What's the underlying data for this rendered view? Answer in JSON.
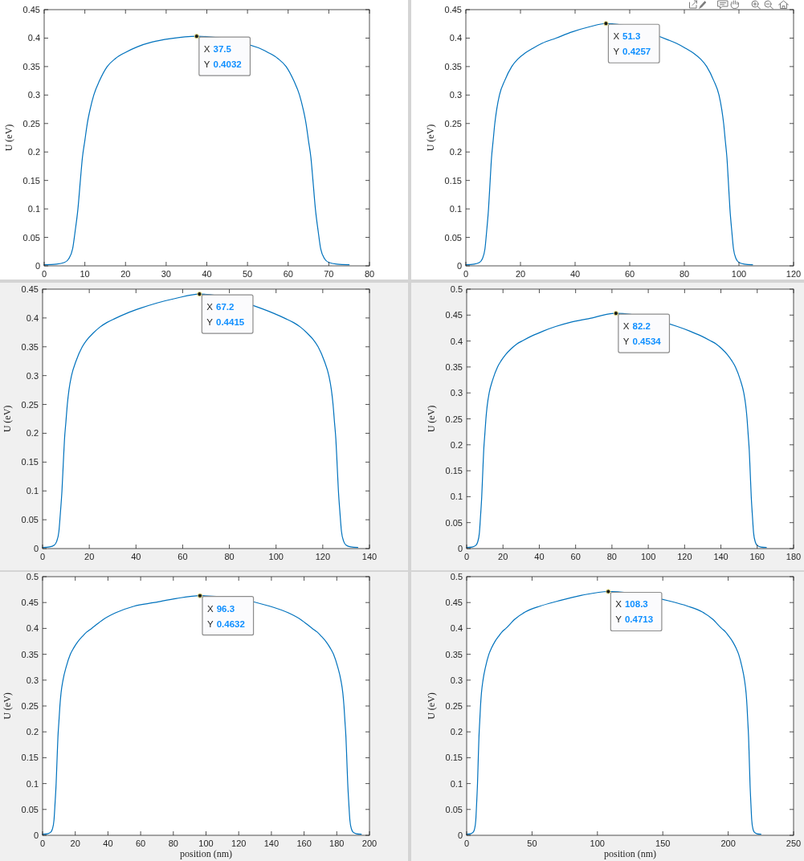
{
  "chart_data": [
    {
      "type": "line",
      "ylabel": "U (eV)",
      "color": "#0072bd",
      "xlim": [
        0,
        80
      ],
      "xticks": [
        0,
        10,
        20,
        30,
        40,
        50,
        60,
        70,
        80
      ],
      "ylim": [
        0,
        0.45
      ],
      "yticks": [
        0,
        0.05,
        0.1,
        0.15,
        0.2,
        0.25,
        0.3,
        0.35,
        0.4,
        0.45
      ],
      "x": [
        0,
        3,
        5,
        6,
        7,
        7.6,
        8.3,
        8.9,
        9.4,
        10,
        10.6,
        11.3,
        12.2,
        13.6,
        15.5,
        17.5,
        20,
        23,
        26.5,
        31,
        37.5,
        52.7,
        55,
        57.5,
        59.5,
        61.4,
        62.8,
        63.7,
        64.4,
        65,
        65.6,
        66.1,
        66.7,
        67.4,
        68,
        69,
        70,
        72,
        75
      ],
      "values": [
        0.002,
        0.003,
        0.006,
        0.012,
        0.03,
        0.06,
        0.1,
        0.15,
        0.19,
        0.22,
        0.25,
        0.275,
        0.3,
        0.325,
        0.35,
        0.364,
        0.375,
        0.385,
        0.393,
        0.399,
        0.4032,
        0.383,
        0.375,
        0.364,
        0.35,
        0.325,
        0.3,
        0.275,
        0.25,
        0.22,
        0.19,
        0.15,
        0.1,
        0.06,
        0.03,
        0.012,
        0.006,
        0.003,
        0.002
      ],
      "annotations": [
        {
          "text": "X 37.5\nY 0.4032",
          "x": 37.5,
          "y": 0.4032
        }
      ]
    },
    {
      "type": "line",
      "ylabel": "U (eV)",
      "color": "#0072bd",
      "xlim": [
        0,
        120
      ],
      "xticks": [
        0,
        20,
        40,
        60,
        80,
        100,
        120
      ],
      "ylim": [
        0,
        0.45
      ],
      "yticks": [
        0,
        0.05,
        0.1,
        0.15,
        0.2,
        0.25,
        0.3,
        0.35,
        0.4,
        0.45
      ],
      "x": [
        0,
        3,
        5,
        6,
        7,
        7.6,
        8.3,
        8.9,
        9.4,
        10,
        10.6,
        11.3,
        12.3,
        14.2,
        16.8,
        19,
        21.5,
        24.5,
        28,
        33,
        39,
        45.4,
        51.3,
        74,
        77,
        80.5,
        83.5,
        86,
        88.2,
        90.8,
        92.7,
        93.7,
        94.4,
        95,
        95.6,
        96.1,
        96.7,
        97.4,
        98,
        99,
        100,
        102,
        105
      ],
      "values": [
        0.002,
        0.003,
        0.006,
        0.012,
        0.03,
        0.06,
        0.1,
        0.15,
        0.19,
        0.22,
        0.25,
        0.275,
        0.3,
        0.325,
        0.35,
        0.363,
        0.373,
        0.382,
        0.391,
        0.4,
        0.411,
        0.42,
        0.4257,
        0.397,
        0.391,
        0.382,
        0.373,
        0.363,
        0.35,
        0.325,
        0.3,
        0.275,
        0.25,
        0.22,
        0.19,
        0.15,
        0.1,
        0.06,
        0.03,
        0.012,
        0.006,
        0.003,
        0.002
      ],
      "annotations": [
        {
          "text": "X 51.3\nY 0.4257",
          "x": 51.3,
          "y": 0.4257
        }
      ]
    },
    {
      "type": "line",
      "ylabel": "U (eV)",
      "color": "#0072bd",
      "xlim": [
        0,
        140
      ],
      "xticks": [
        0,
        20,
        40,
        60,
        80,
        100,
        120,
        140
      ],
      "ylim": [
        0,
        0.45
      ],
      "yticks": [
        0,
        0.05,
        0.1,
        0.15,
        0.2,
        0.25,
        0.3,
        0.35,
        0.4,
        0.45
      ],
      "x": [
        0,
        3,
        5,
        6,
        7,
        7.6,
        8.3,
        8.9,
        9.4,
        10,
        10.6,
        11.3,
        12.4,
        14.3,
        17,
        19,
        21.5,
        24.5,
        27.5,
        31,
        36,
        42,
        49,
        57,
        67.2,
        94,
        99,
        104,
        107.5,
        110.5,
        113.5,
        116,
        118,
        120.7,
        122.6,
        123.7,
        124.4,
        125,
        125.6,
        126.1,
        126.7,
        127.4,
        128,
        129,
        130,
        132,
        135
      ],
      "values": [
        0.002,
        0.003,
        0.006,
        0.012,
        0.03,
        0.06,
        0.1,
        0.15,
        0.19,
        0.22,
        0.25,
        0.275,
        0.3,
        0.325,
        0.35,
        0.362,
        0.373,
        0.384,
        0.392,
        0.399,
        0.408,
        0.417,
        0.426,
        0.434,
        0.4415,
        0.416,
        0.408,
        0.399,
        0.392,
        0.384,
        0.373,
        0.362,
        0.35,
        0.325,
        0.3,
        0.275,
        0.25,
        0.22,
        0.19,
        0.15,
        0.1,
        0.06,
        0.03,
        0.012,
        0.006,
        0.003,
        0.002
      ],
      "annotations": [
        {
          "text": "X 67.2\nY 0.4415",
          "x": 67.2,
          "y": 0.4415
        }
      ]
    },
    {
      "type": "line",
      "ylabel": "U (eV)",
      "color": "#0072bd",
      "xlim": [
        0,
        180
      ],
      "xticks": [
        0,
        20,
        40,
        60,
        80,
        100,
        120,
        140,
        160,
        180
      ],
      "ylim": [
        0,
        0.5
      ],
      "yticks": [
        0,
        0.05,
        0.1,
        0.15,
        0.2,
        0.25,
        0.3,
        0.35,
        0.4,
        0.45,
        0.5
      ],
      "x": [
        0,
        3,
        5,
        6,
        7,
        7.6,
        8.3,
        8.9,
        9.4,
        10,
        10.6,
        11.3,
        12.4,
        14.3,
        17,
        19,
        21.5,
        24.5,
        27.5,
        31,
        36,
        42,
        49,
        57,
        67,
        82.2,
        116,
        123,
        129,
        134,
        137.5,
        140.5,
        143.5,
        146,
        148,
        150.7,
        152.6,
        153.7,
        154.4,
        155,
        155.6,
        156.1,
        156.7,
        157.4,
        158,
        159,
        160,
        162,
        165
      ],
      "values": [
        0.002,
        0.003,
        0.006,
        0.012,
        0.03,
        0.06,
        0.1,
        0.15,
        0.19,
        0.22,
        0.25,
        0.275,
        0.3,
        0.325,
        0.35,
        0.362,
        0.374,
        0.385,
        0.394,
        0.401,
        0.41,
        0.419,
        0.428,
        0.436,
        0.443,
        0.4534,
        0.428,
        0.419,
        0.41,
        0.401,
        0.394,
        0.385,
        0.374,
        0.362,
        0.35,
        0.325,
        0.3,
        0.275,
        0.25,
        0.22,
        0.19,
        0.15,
        0.1,
        0.06,
        0.03,
        0.012,
        0.006,
        0.003,
        0.002
      ],
      "annotations": [
        {
          "text": "X 82.2\nY 0.4534",
          "x": 82.2,
          "y": 0.4534
        }
      ]
    },
    {
      "type": "line",
      "xlabel": "position (nm)",
      "ylabel": "U (eV)",
      "color": "#0072bd",
      "xlim": [
        0,
        200
      ],
      "xticks": [
        0,
        20,
        40,
        60,
        80,
        100,
        120,
        140,
        160,
        180,
        200
      ],
      "ylim": [
        0,
        0.5
      ],
      "yticks": [
        0,
        0.05,
        0.1,
        0.15,
        0.2,
        0.25,
        0.3,
        0.35,
        0.4,
        0.45,
        0.5
      ],
      "x": [
        0,
        3,
        5,
        6,
        7,
        7.6,
        8.3,
        8.9,
        9.4,
        10,
        10.6,
        11.3,
        12.5,
        14.4,
        17,
        19,
        21.5,
        24.5,
        27,
        30,
        37,
        44.6,
        56,
        68.5,
        82,
        96.3,
        139,
        150.4,
        158,
        165,
        168,
        170.5,
        173.5,
        176,
        178,
        180.6,
        182.5,
        183.7,
        184.4,
        185,
        185.6,
        186.1,
        186.7,
        187.4,
        188,
        189,
        190,
        192,
        195
      ],
      "values": [
        0.002,
        0.003,
        0.006,
        0.012,
        0.03,
        0.06,
        0.1,
        0.15,
        0.19,
        0.22,
        0.25,
        0.275,
        0.3,
        0.325,
        0.35,
        0.362,
        0.374,
        0.385,
        0.393,
        0.4,
        0.417,
        0.43,
        0.443,
        0.45,
        0.458,
        0.4632,
        0.443,
        0.43,
        0.417,
        0.4,
        0.393,
        0.385,
        0.374,
        0.362,
        0.35,
        0.325,
        0.3,
        0.275,
        0.25,
        0.22,
        0.19,
        0.15,
        0.1,
        0.06,
        0.03,
        0.012,
        0.006,
        0.003,
        0.002
      ],
      "annotations": [
        {
          "text": "X 96.3\nY 0.4632",
          "x": 96.3,
          "y": 0.4632
        }
      ]
    },
    {
      "type": "line",
      "xlabel": "position (nm)",
      "ylabel": "U (eV)",
      "color": "#0072bd",
      "xlim": [
        0,
        250
      ],
      "xticks": [
        0,
        50,
        100,
        150,
        200,
        250
      ],
      "ylim": [
        0,
        0.5
      ],
      "yticks": [
        0,
        0.05,
        0.1,
        0.15,
        0.2,
        0.25,
        0.3,
        0.35,
        0.4,
        0.45,
        0.5
      ],
      "x": [
        0,
        3,
        5,
        6,
        7,
        7.6,
        8.3,
        8.9,
        9.4,
        10,
        10.6,
        11.3,
        12.5,
        14.4,
        17,
        19,
        21.5,
        24.5,
        27,
        30,
        37,
        45,
        56,
        70,
        88,
        108.3,
        155,
        169,
        180,
        188,
        195,
        198,
        200.5,
        203.5,
        206,
        208,
        210.6,
        212.5,
        213.7,
        214.4,
        215,
        215.6,
        216.1,
        216.7,
        217.4,
        218,
        219,
        220,
        222,
        225
      ],
      "values": [
        0.002,
        0.003,
        0.006,
        0.012,
        0.03,
        0.06,
        0.1,
        0.15,
        0.19,
        0.22,
        0.25,
        0.275,
        0.3,
        0.325,
        0.35,
        0.362,
        0.374,
        0.385,
        0.393,
        0.4,
        0.418,
        0.432,
        0.443,
        0.453,
        0.464,
        0.4713,
        0.453,
        0.443,
        0.432,
        0.418,
        0.4,
        0.393,
        0.385,
        0.374,
        0.362,
        0.35,
        0.325,
        0.3,
        0.275,
        0.25,
        0.22,
        0.19,
        0.15,
        0.1,
        0.06,
        0.03,
        0.012,
        0.006,
        0.003,
        0.002
      ],
      "annotations": [
        {
          "text": "X 108.3\nY 0.4713",
          "x": 108.3,
          "y": 0.4713
        }
      ]
    }
  ]
}
